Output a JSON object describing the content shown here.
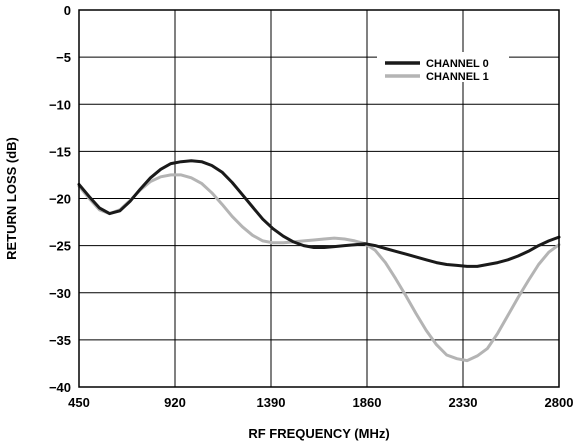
{
  "chart_data": {
    "type": "line",
    "title": "",
    "xlabel": "RF FREQUENCY (MHz)",
    "ylabel": "RETURN LOSS (dB)",
    "xlim": [
      450,
      2800
    ],
    "ylim": [
      -40,
      0
    ],
    "x_ticks": [
      "450",
      "920",
      "1390",
      "1860",
      "2330",
      "2800"
    ],
    "y_ticks": [
      "0",
      "−5",
      "−10",
      "−15",
      "−20",
      "−25",
      "−30",
      "−35",
      "−40"
    ],
    "grid": true,
    "legend_position": "top-right",
    "series": [
      {
        "name": "CHANNEL 0",
        "color": "#1a1a1a",
        "points": [
          [
            450,
            -18.5
          ],
          [
            500,
            -19.8
          ],
          [
            550,
            -21.0
          ],
          [
            600,
            -21.6
          ],
          [
            650,
            -21.3
          ],
          [
            700,
            -20.3
          ],
          [
            750,
            -19.0
          ],
          [
            800,
            -17.8
          ],
          [
            850,
            -16.9
          ],
          [
            900,
            -16.3
          ],
          [
            950,
            -16.1
          ],
          [
            1000,
            -16.0
          ],
          [
            1050,
            -16.1
          ],
          [
            1100,
            -16.5
          ],
          [
            1150,
            -17.2
          ],
          [
            1200,
            -18.3
          ],
          [
            1250,
            -19.6
          ],
          [
            1300,
            -20.9
          ],
          [
            1350,
            -22.2
          ],
          [
            1400,
            -23.2
          ],
          [
            1450,
            -24.0
          ],
          [
            1500,
            -24.6
          ],
          [
            1550,
            -25.0
          ],
          [
            1600,
            -25.2
          ],
          [
            1650,
            -25.2
          ],
          [
            1700,
            -25.1
          ],
          [
            1750,
            -25.0
          ],
          [
            1800,
            -24.9
          ],
          [
            1850,
            -24.8
          ],
          [
            1900,
            -25.0
          ],
          [
            1950,
            -25.3
          ],
          [
            2000,
            -25.6
          ],
          [
            2050,
            -25.9
          ],
          [
            2100,
            -26.2
          ],
          [
            2150,
            -26.5
          ],
          [
            2200,
            -26.8
          ],
          [
            2250,
            -27.0
          ],
          [
            2300,
            -27.1
          ],
          [
            2350,
            -27.2
          ],
          [
            2400,
            -27.2
          ],
          [
            2450,
            -27.0
          ],
          [
            2500,
            -26.8
          ],
          [
            2550,
            -26.5
          ],
          [
            2600,
            -26.1
          ],
          [
            2650,
            -25.6
          ],
          [
            2700,
            -25.0
          ],
          [
            2750,
            -24.5
          ],
          [
            2800,
            -24.1
          ]
        ]
      },
      {
        "name": "CHANNEL 1",
        "color": "#b4b4b4",
        "points": [
          [
            450,
            -18.7
          ],
          [
            500,
            -20.0
          ],
          [
            550,
            -21.2
          ],
          [
            600,
            -21.6
          ],
          [
            650,
            -21.2
          ],
          [
            700,
            -20.2
          ],
          [
            750,
            -19.1
          ],
          [
            800,
            -18.2
          ],
          [
            850,
            -17.7
          ],
          [
            900,
            -17.5
          ],
          [
            950,
            -17.5
          ],
          [
            1000,
            -17.8
          ],
          [
            1050,
            -18.4
          ],
          [
            1100,
            -19.4
          ],
          [
            1150,
            -20.6
          ],
          [
            1200,
            -21.9
          ],
          [
            1250,
            -23.0
          ],
          [
            1300,
            -23.9
          ],
          [
            1350,
            -24.5
          ],
          [
            1400,
            -24.7
          ],
          [
            1450,
            -24.7
          ],
          [
            1500,
            -24.6
          ],
          [
            1550,
            -24.5
          ],
          [
            1600,
            -24.4
          ],
          [
            1650,
            -24.3
          ],
          [
            1700,
            -24.2
          ],
          [
            1750,
            -24.3
          ],
          [
            1800,
            -24.5
          ],
          [
            1850,
            -24.8
          ],
          [
            1900,
            -25.5
          ],
          [
            1950,
            -26.8
          ],
          [
            2000,
            -28.5
          ],
          [
            2050,
            -30.3
          ],
          [
            2100,
            -32.2
          ],
          [
            2150,
            -34.0
          ],
          [
            2200,
            -35.5
          ],
          [
            2250,
            -36.6
          ],
          [
            2300,
            -37.0
          ],
          [
            2350,
            -37.2
          ],
          [
            2400,
            -36.7
          ],
          [
            2450,
            -35.9
          ],
          [
            2500,
            -34.3
          ],
          [
            2550,
            -32.4
          ],
          [
            2600,
            -30.5
          ],
          [
            2650,
            -28.7
          ],
          [
            2700,
            -27.0
          ],
          [
            2750,
            -25.7
          ],
          [
            2800,
            -24.9
          ]
        ]
      }
    ]
  }
}
